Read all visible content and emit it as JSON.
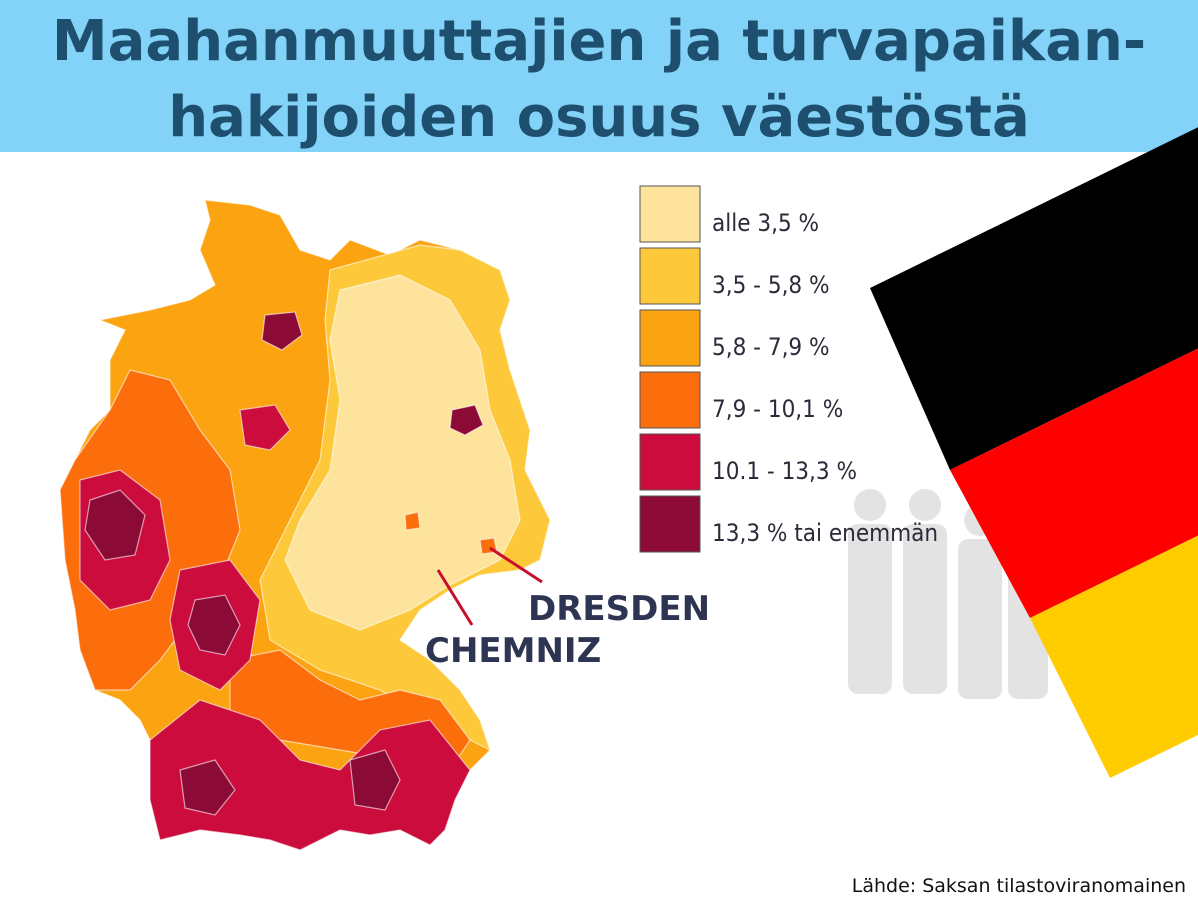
{
  "header": {
    "title_lines": [
      "Maahanmuuttajien ja turvapaikan-",
      "hakijoiden osuus väestöstä"
    ]
  },
  "legend": {
    "items": [
      {
        "label": "alle 3,5 %",
        "color": "#fde39b"
      },
      {
        "label": "3,5 - 5,8 %",
        "color": "#fdc93a"
      },
      {
        "label": "5,8 - 7,9 %",
        "color": "#fca312"
      },
      {
        "label": "7,9 - 10,1 %",
        "color": "#fc6e0c"
      },
      {
        "label": "10.1 - 13,3 %",
        "color": "#cc0c3c"
      },
      {
        "label": "13,3 % tai enemmän",
        "color": "#8c0a36"
      }
    ]
  },
  "cities": [
    {
      "label": "DRESDEN"
    },
    {
      "label": "CHEMNIZ"
    }
  ],
  "source": "Lähde: Saksan tilastoviranomainen"
}
